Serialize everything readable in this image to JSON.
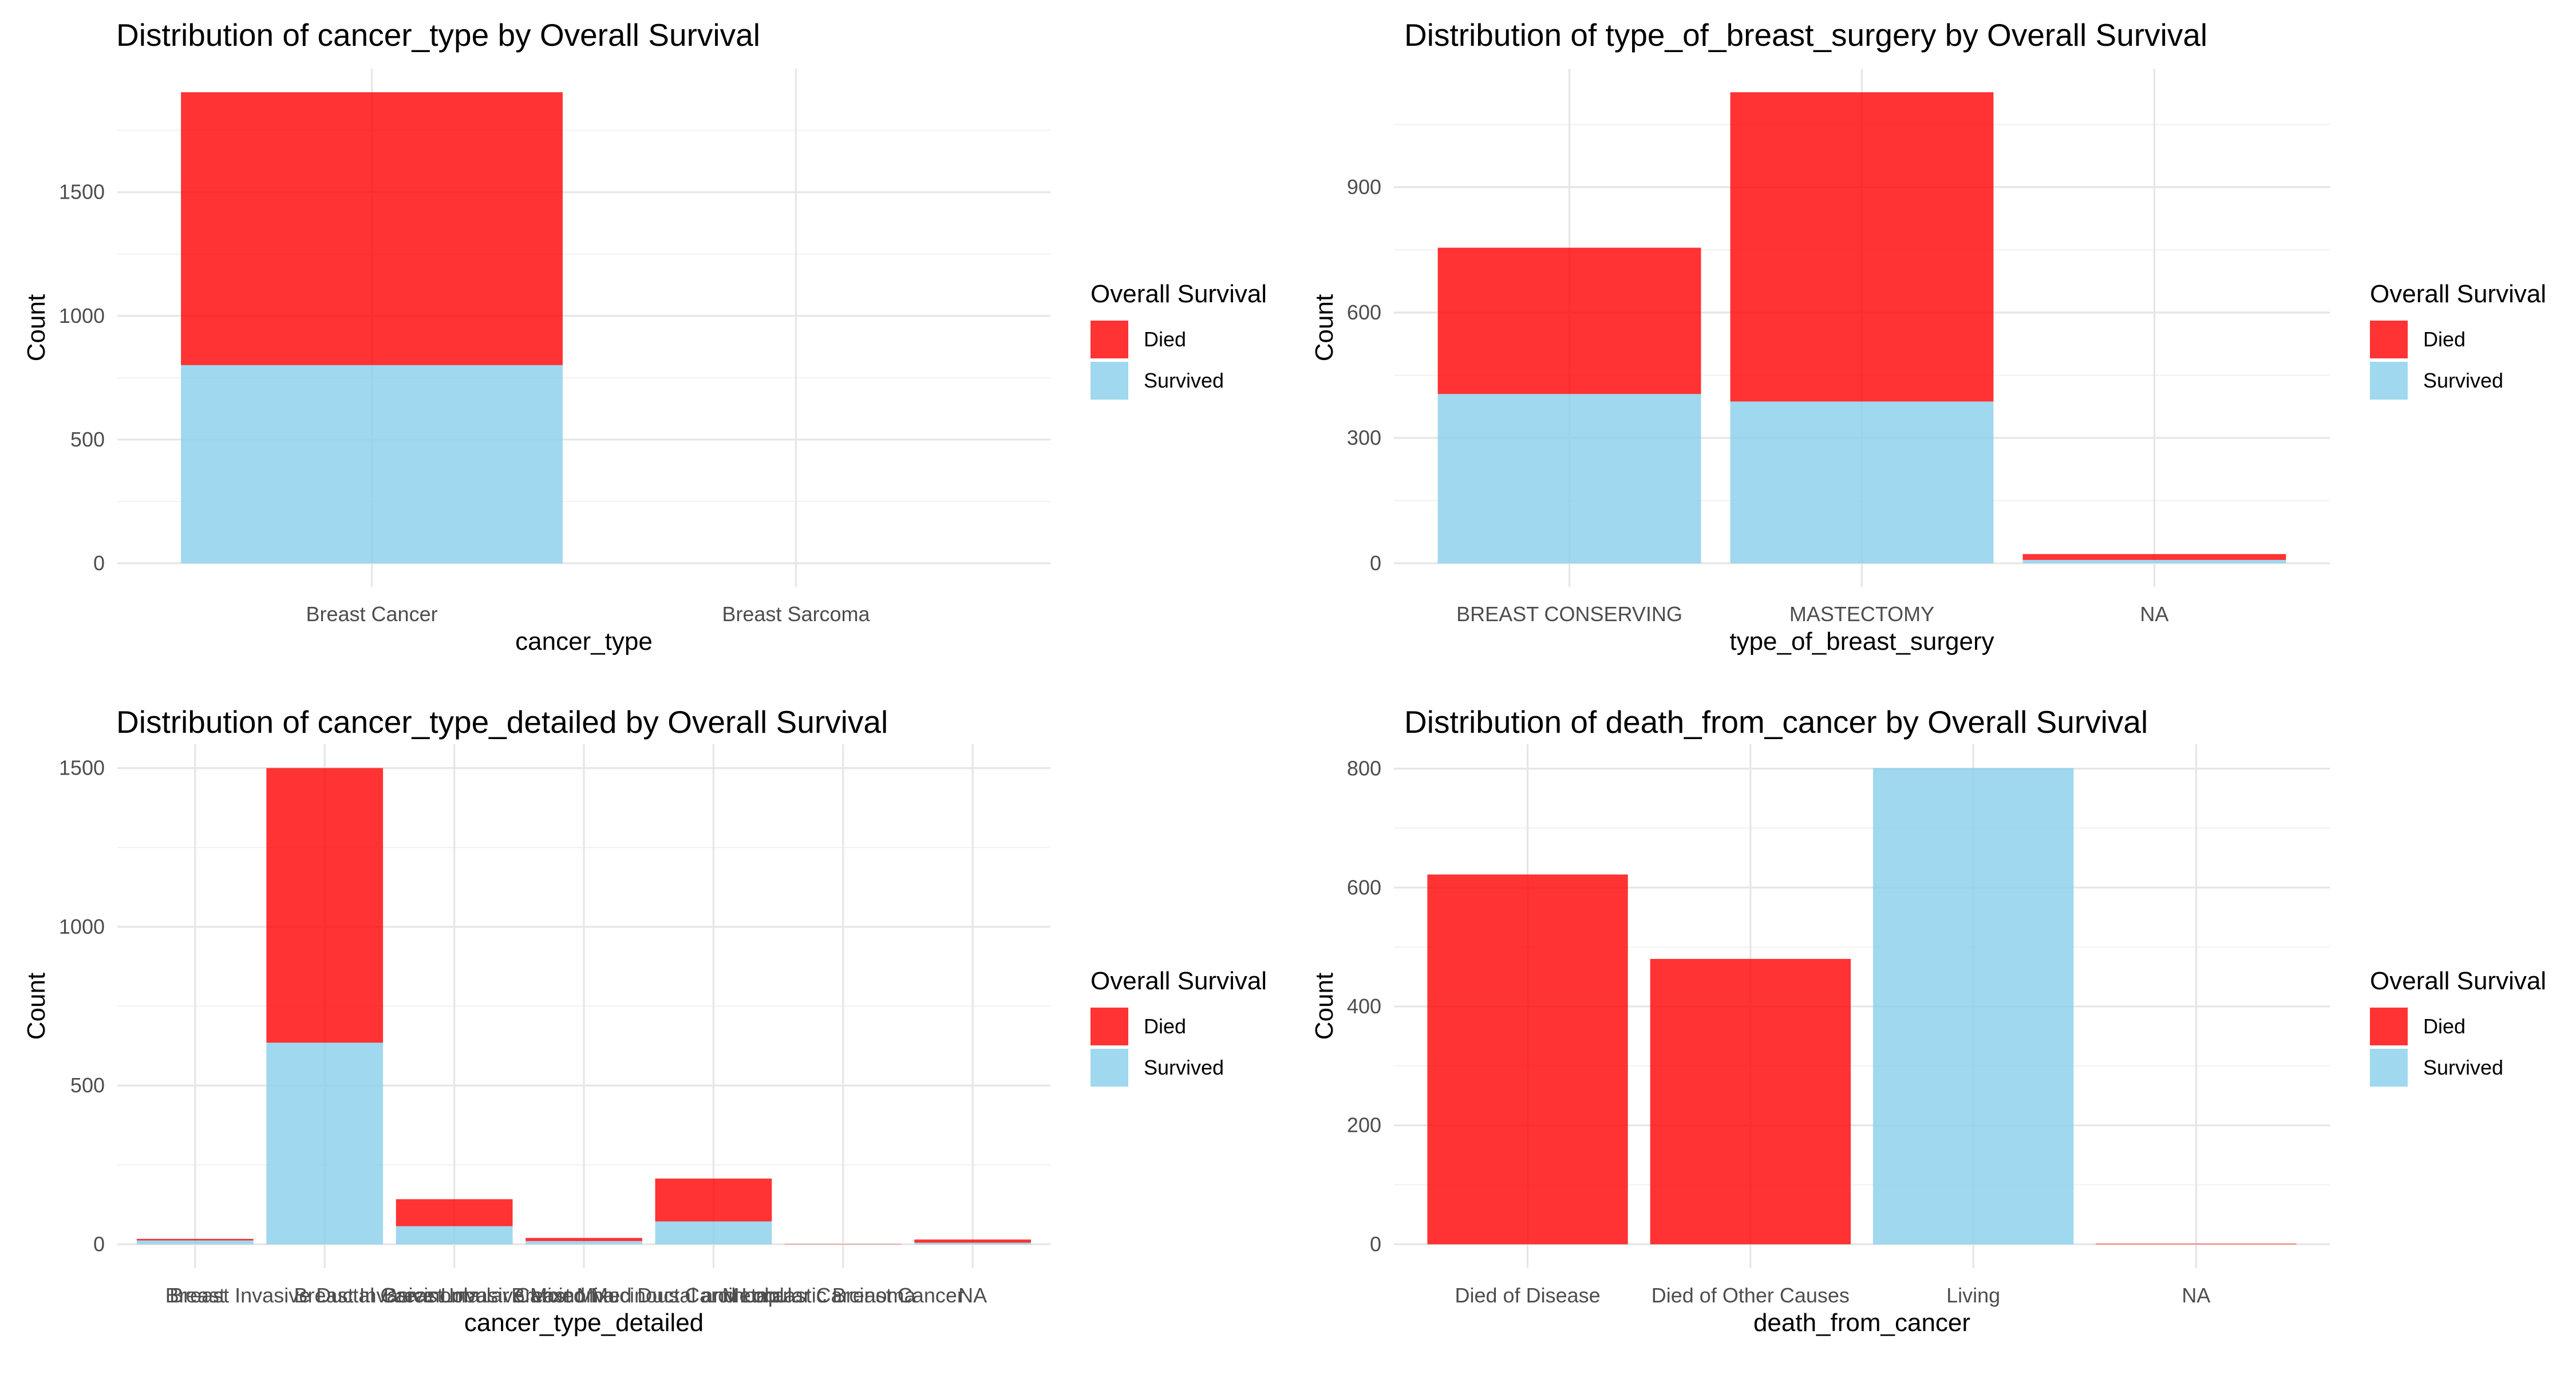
{
  "colors": {
    "died": "#FF0000",
    "survived": "#87CEEB",
    "grid_major": "#E6E6E6",
    "grid_minor": "#F2F2F2",
    "text": "#000000",
    "tick_text": "#4D4D4D"
  },
  "legend": {
    "title": "Overall Survival",
    "items": [
      "Died",
      "Survived"
    ]
  },
  "chart_data": [
    {
      "type": "bar",
      "stacked": true,
      "title": "Distribution of cancer_type by Overall Survival",
      "xlabel": "cancer_type",
      "ylabel": "Count",
      "categories": [
        "Breast Cancer",
        "Breast Sarcoma"
      ],
      "series": [
        {
          "name": "Died",
          "values": [
            1103,
            0
          ]
        },
        {
          "name": "Survived",
          "values": [
            801,
            0
          ]
        }
      ],
      "ylim": [
        0,
        1904
      ],
      "yticks": [
        0,
        500,
        1000,
        1500
      ],
      "ytick_labels": [
        "0",
        "500",
        "1000",
        "1500"
      ],
      "legend_position": "right",
      "grid": true
    },
    {
      "type": "bar",
      "stacked": true,
      "title": "Distribution of type_of_breast_surgery by Overall Survival",
      "xlabel": "type_of_breast_surgery",
      "ylabel": "Count",
      "categories": [
        "BREAST CONSERVING",
        "MASTECTOMY",
        "NA"
      ],
      "series": [
        {
          "name": "Died",
          "values": [
            350,
            740,
            14
          ]
        },
        {
          "name": "Survived",
          "values": [
            405,
            387,
            8
          ]
        }
      ],
      "ylim": [
        0,
        1127
      ],
      "yticks": [
        0,
        300,
        600,
        900
      ],
      "ytick_labels": [
        "0",
        "300",
        "600",
        "900"
      ],
      "legend_position": "right",
      "grid": true
    },
    {
      "type": "bar",
      "stacked": true,
      "title": "Distribution of cancer_type_detailed by Overall Survival",
      "xlabel": "cancer_type_detailed",
      "ylabel": "Count",
      "categories": [
        "Breast",
        "Breast Invasive Ductal Carcinoma",
        "Breast Invasive Lobular Carcinoma",
        "Breast Invasive Mixed Mucinous Carcinoma",
        "Breast Mixed Ductal and Lobular Carcinoma",
        "Metaplastic Breast Cancer",
        "NA"
      ],
      "series": [
        {
          "name": "Died",
          "values": [
            5,
            865,
            85,
            10,
            135,
            1,
            10
          ]
        },
        {
          "name": "Survived",
          "values": [
            12,
            635,
            57,
            10,
            72,
            0,
            5
          ]
        }
      ],
      "ylim": [
        0,
        1500
      ],
      "yticks": [
        0,
        500,
        1000,
        1500
      ],
      "ytick_labels": [
        "0",
        "500",
        "1000",
        "1500"
      ],
      "legend_position": "right",
      "grid": true
    },
    {
      "type": "bar",
      "stacked": true,
      "title": "Distribution of death_from_cancer by Overall Survival",
      "xlabel": "death_from_cancer",
      "ylabel": "Count",
      "categories": [
        "Died of Disease",
        "Died of Other Causes",
        "Living",
        "NA"
      ],
      "series": [
        {
          "name": "Died",
          "values": [
            622,
            480,
            0,
            1
          ]
        },
        {
          "name": "Survived",
          "values": [
            0,
            0,
            801,
            0
          ]
        }
      ],
      "ylim": [
        0,
        801
      ],
      "yticks": [
        0,
        200,
        400,
        600,
        800
      ],
      "ytick_labels": [
        "0",
        "200",
        "400",
        "600",
        "800"
      ],
      "legend_position": "right",
      "grid": true
    }
  ]
}
